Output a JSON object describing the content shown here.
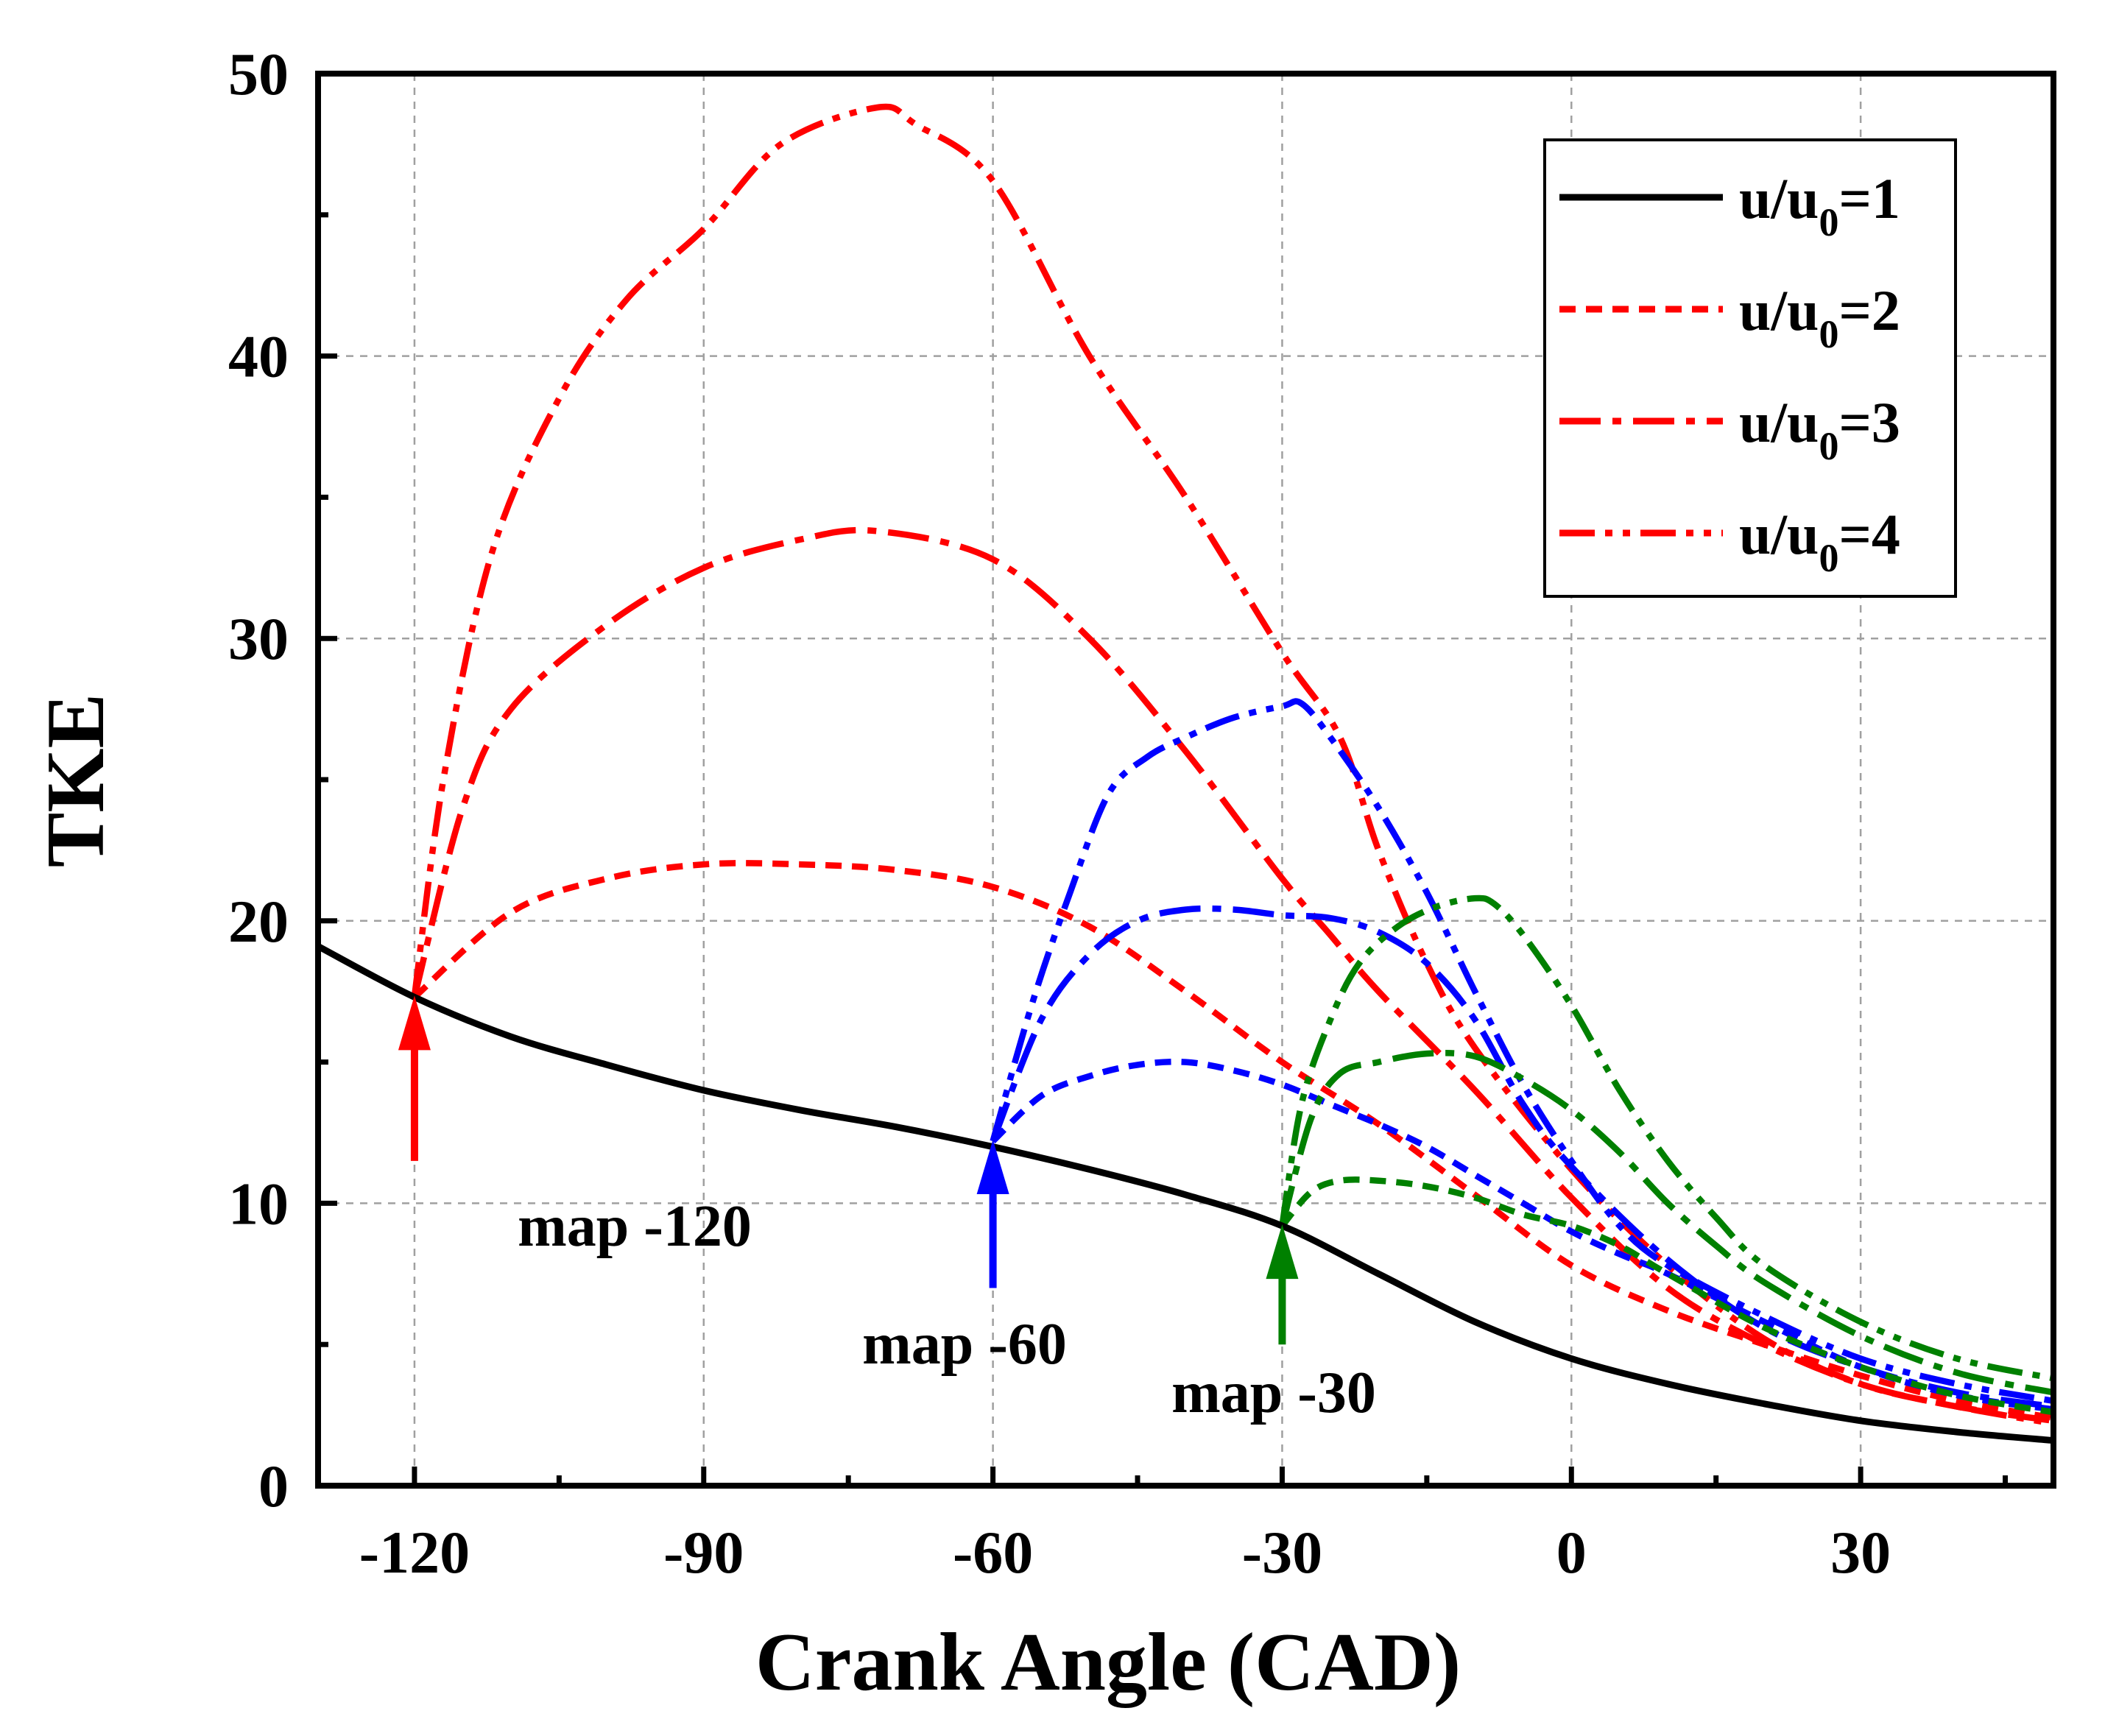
{
  "chart_data": {
    "type": "line",
    "xlabel": "Crank Angle (CAD)",
    "ylabel": "TKE",
    "xlim": [
      -130,
      50
    ],
    "ylim": [
      0,
      50
    ],
    "xticks": [
      -120,
      -90,
      -60,
      -30,
      0,
      30
    ],
    "yticks": [
      0,
      10,
      20,
      30,
      40,
      50
    ],
    "grid": true,
    "legend_position": "top-right",
    "legend": [
      {
        "text": "u/u",
        "sub": "0",
        "suffix": "=1",
        "style": "solid",
        "color": "#000000"
      },
      {
        "text": "u/u",
        "sub": "0",
        "suffix": "=2",
        "style": "dash",
        "color": "#ff0000"
      },
      {
        "text": "u/u",
        "sub": "0",
        "suffix": "=3",
        "style": "dashdot",
        "color": "#ff0000"
      },
      {
        "text": "u/u",
        "sub": "0",
        "suffix": "=4",
        "style": "dashdotdot",
        "color": "#ff0000"
      }
    ],
    "annotations": [
      {
        "text": "map -120",
        "x": -120,
        "color": "#ff0000",
        "y_from": 11.5,
        "y_to": 17.3
      },
      {
        "text": "map -60",
        "x": -60,
        "color": "#0000ff",
        "y_from": 7.0,
        "y_to": 12.2
      },
      {
        "text": "map -30",
        "x": -30,
        "color": "#008000",
        "y_from": 5.0,
        "y_to": 9.2
      }
    ],
    "series": [
      {
        "name": "u/u0=1",
        "group": "baseline",
        "color": "#000000",
        "style": "solid",
        "x": [
          -130,
          -120,
          -110,
          -100,
          -90,
          -80,
          -70,
          -60,
          -50,
          -40,
          -30,
          -20,
          -10,
          0,
          10,
          20,
          30,
          40,
          50
        ],
        "y": [
          19.1,
          17.3,
          15.9,
          14.9,
          14.0,
          13.3,
          12.7,
          12.0,
          11.2,
          10.3,
          9.2,
          7.5,
          5.8,
          4.5,
          3.6,
          2.9,
          2.3,
          1.9,
          1.6
        ]
      },
      {
        "name": "u/u0=2 (map -120)",
        "group": "map -120",
        "color": "#ff0000",
        "style": "dash",
        "x": [
          -120,
          -110,
          -100,
          -90,
          -80,
          -70,
          -60,
          -50,
          -40,
          -30,
          -20,
          -10,
          0,
          10,
          20,
          30,
          40,
          50
        ],
        "y": [
          17.3,
          20.3,
          21.5,
          22.0,
          22.0,
          21.8,
          21.2,
          19.8,
          17.5,
          15.0,
          12.8,
          10.3,
          7.8,
          6.2,
          5.0,
          3.9,
          3.0,
          2.4
        ]
      },
      {
        "name": "u/u0=3 (map -120)",
        "group": "map -120",
        "color": "#ff0000",
        "style": "dashdot",
        "x": [
          -120,
          -115,
          -110,
          -100,
          -90,
          -80,
          -72,
          -60,
          -50,
          -40,
          -30,
          -25,
          -20,
          -10,
          0,
          10,
          20,
          30,
          40,
          50
        ],
        "y": [
          17.3,
          24.0,
          27.5,
          30.5,
          32.5,
          33.5,
          33.8,
          32.8,
          30.0,
          26.0,
          21.5,
          19.5,
          17.5,
          14.0,
          10.2,
          7.0,
          5.0,
          3.6,
          2.8,
          2.3
        ]
      },
      {
        "name": "u/u0=4 (map -120)",
        "group": "map -120",
        "color": "#ff0000",
        "style": "dashdotdot",
        "x": [
          -120,
          -117,
          -112,
          -105,
          -98,
          -90,
          -82,
          -72,
          -68,
          -60,
          -50,
          -40,
          -30,
          -24,
          -20,
          -15,
          -10,
          0,
          10,
          20,
          30,
          40,
          50
        ],
        "y": [
          17.3,
          25.0,
          33.0,
          38.5,
          42.0,
          44.5,
          47.5,
          48.8,
          48.2,
          46.2,
          40.0,
          35.0,
          29.5,
          26.5,
          22.5,
          18.5,
          15.5,
          11.2,
          7.8,
          5.2,
          3.6,
          2.8,
          2.2
        ]
      },
      {
        "name": "u/u0=2 (map -60)",
        "group": "map -60",
        "color": "#0000ff",
        "style": "dash",
        "x": [
          -60,
          -55,
          -50,
          -45,
          -40,
          -35,
          -30,
          -25,
          -20,
          -15,
          -10,
          -5,
          0,
          5,
          10,
          20,
          30,
          40,
          50
        ],
        "y": [
          12.2,
          13.8,
          14.5,
          14.9,
          15.0,
          14.7,
          14.2,
          13.5,
          12.8,
          12.0,
          11.0,
          10.0,
          9.0,
          8.2,
          7.5,
          5.8,
          4.2,
          3.2,
          2.7
        ]
      },
      {
        "name": "u/u0=3 (map -60)",
        "group": "map -60",
        "color": "#0000ff",
        "style": "dashdot",
        "x": [
          -60,
          -55,
          -50,
          -45,
          -40,
          -35,
          -30,
          -25,
          -20,
          -15,
          -10,
          -5,
          0,
          10,
          20,
          30,
          40,
          50
        ],
        "y": [
          12.2,
          16.5,
          18.8,
          20.0,
          20.4,
          20.4,
          20.2,
          20.1,
          19.6,
          18.5,
          16.5,
          13.5,
          11.3,
          8.0,
          5.6,
          4.2,
          3.3,
          2.8
        ]
      },
      {
        "name": "u/u0=4 (map -60)",
        "group": "map -60",
        "color": "#0000ff",
        "style": "dashdotdot",
        "x": [
          -60,
          -56,
          -52,
          -48,
          -44,
          -40,
          -35,
          -30,
          -28,
          -25,
          -20,
          -15,
          -10,
          -5,
          0,
          5,
          10,
          20,
          30,
          40,
          50
        ],
        "y": [
          12.2,
          17.0,
          21.0,
          24.5,
          25.8,
          26.5,
          27.2,
          27.6,
          27.7,
          26.5,
          24.0,
          21.0,
          17.5,
          14.2,
          11.5,
          9.2,
          7.8,
          6.0,
          4.5,
          3.6,
          3.0
        ]
      },
      {
        "name": "u/u0=2 (map -30)",
        "group": "map -30",
        "color": "#008000",
        "style": "dash",
        "x": [
          -30,
          -27,
          -24,
          -20,
          -15,
          -10,
          -5,
          0,
          5,
          10,
          20,
          30,
          40,
          50
        ],
        "y": [
          9.2,
          10.4,
          10.8,
          10.8,
          10.6,
          10.2,
          9.6,
          9.2,
          8.5,
          7.5,
          5.6,
          4.2,
          3.2,
          2.6
        ]
      },
      {
        "name": "u/u0=3 (map -30)",
        "group": "map -30",
        "color": "#008000",
        "style": "dashdot",
        "x": [
          -30,
          -27,
          -24,
          -20,
          -15,
          -10,
          -5,
          0,
          5,
          10,
          15,
          20,
          30,
          40,
          50
        ],
        "y": [
          9.2,
          13.0,
          14.6,
          15.0,
          15.3,
          15.2,
          14.4,
          13.3,
          11.8,
          10.0,
          8.5,
          7.2,
          5.3,
          4.0,
          3.3
        ]
      },
      {
        "name": "u/u0=4 (map -30)",
        "group": "map -30",
        "color": "#008000",
        "style": "dashdotdot",
        "x": [
          -30,
          -28,
          -25,
          -22,
          -18,
          -14,
          -10,
          -8,
          -5,
          0,
          5,
          10,
          15,
          20,
          30,
          40,
          50
        ],
        "y": [
          9.2,
          13.5,
          16.5,
          18.5,
          19.8,
          20.5,
          20.8,
          20.6,
          19.5,
          17.0,
          14.0,
          11.5,
          9.5,
          7.8,
          5.8,
          4.5,
          3.8
        ]
      }
    ]
  }
}
